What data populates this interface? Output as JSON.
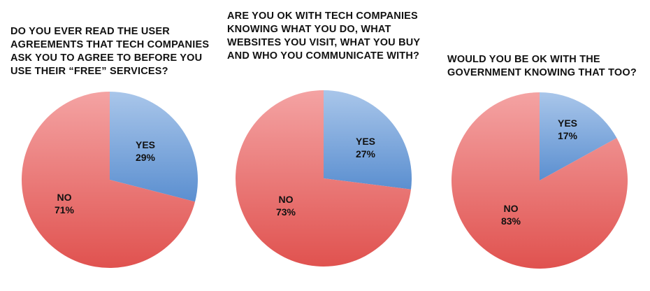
{
  "colors": {
    "yes": "#5b8fd0",
    "yes_light": "#a9c6ea",
    "no": "#e0524f",
    "no_light": "#f4a3a3"
  },
  "chart_data": [
    {
      "type": "pie",
      "title": "DO YOU EVER READ THE USER AGREEMENTS THAT TECH COMPANIES ASK YOU TO AGREE TO BEFORE YOU USE THEIR “FREE” SERVICES?",
      "slices": [
        {
          "label": "YES",
          "value": 29,
          "value_label": "29%"
        },
        {
          "label": "NO",
          "value": 71,
          "value_label": "71%"
        }
      ]
    },
    {
      "type": "pie",
      "title": "ARE YOU OK WITH TECH COMPANIES KNOWING WHAT YOU DO, WHAT WEBSITES YOU VISIT, WHAT YOU BUY AND WHO YOU COMMUNICATE WITH?",
      "slices": [
        {
          "label": "YES",
          "value": 27,
          "value_label": "27%"
        },
        {
          "label": "NO",
          "value": 73,
          "value_label": "73%"
        }
      ]
    },
    {
      "type": "pie",
      "title": "WOULD YOU BE OK WITH THE GOVERNMENT KNOWING THAT TOO?",
      "slices": [
        {
          "label": "YES",
          "value": 17,
          "value_label": "17%"
        },
        {
          "label": "NO",
          "value": 83,
          "value_label": "83%"
        }
      ]
    }
  ]
}
